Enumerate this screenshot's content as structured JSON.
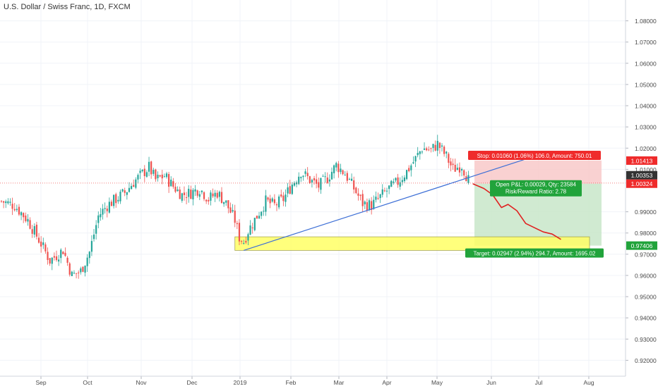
{
  "title": "U.S. Dollar / Swiss Franc, 1D, FXCM",
  "colors": {
    "up": "#26a69a",
    "down": "#ef5350",
    "stop_zone": "#f8c9c9",
    "target_zone": "#c8e6c9",
    "highlight": "#ffff66",
    "trendline": "#3d6fd6",
    "projection": "#e02020",
    "stop_label": "#ef2b2b",
    "target_label": "#21a33b",
    "price_label": "#333333"
  },
  "chart_data": {
    "type": "candlestick",
    "y_axis": {
      "ticks": [
        "1.08000",
        "1.07000",
        "1.06000",
        "1.05000",
        "1.04000",
        "1.03000",
        "1.02000",
        "1.01000",
        "0.99000",
        "0.98000",
        "0.97000",
        "0.96000",
        "0.95000",
        "0.94000",
        "0.93000",
        "0.92000"
      ],
      "range": [
        0.9125,
        1.0865
      ]
    },
    "x_axis": {
      "ticks": [
        "Sep",
        "Oct",
        "Nov",
        "Dec",
        "2019",
        "Feb",
        "Mar",
        "Apr",
        "May",
        "Jun",
        "Jul",
        "Aug"
      ]
    },
    "price_path": [
      [
        0,
        0.995
      ],
      [
        6,
        0.993
      ],
      [
        12,
        0.986
      ],
      [
        18,
        0.975
      ],
      [
        22,
        0.967
      ],
      [
        28,
        0.972
      ],
      [
        32,
        0.96
      ],
      [
        36,
        0.962
      ],
      [
        40,
        0.971
      ],
      [
        44,
        0.988
      ],
      [
        48,
        0.993
      ],
      [
        52,
        0.996
      ],
      [
        56,
        0.999
      ],
      [
        60,
        1.004
      ],
      [
        64,
        1.008
      ],
      [
        67,
        1.011
      ],
      [
        70,
        1.005
      ],
      [
        74,
        1.007
      ],
      [
        78,
        1.002
      ],
      [
        82,
        0.998
      ],
      [
        86,
        0.999
      ],
      [
        90,
        1.001
      ],
      [
        94,
        0.996
      ],
      [
        98,
        0.999
      ],
      [
        102,
        0.994
      ],
      [
        106,
        0.986
      ],
      [
        108,
        0.978
      ],
      [
        110,
        0.976
      ],
      [
        112,
        0.981
      ],
      [
        116,
        0.988
      ],
      [
        120,
        0.995
      ],
      [
        124,
        0.993
      ],
      [
        128,
        0.996
      ],
      [
        132,
        1.003
      ],
      [
        136,
        1.009
      ],
      [
        140,
        1.005
      ],
      [
        144,
        1.002
      ],
      [
        148,
        1.006
      ],
      [
        152,
        1.012
      ],
      [
        156,
        1.008
      ],
      [
        160,
        1.001
      ],
      [
        164,
        0.994
      ],
      [
        168,
        0.993
      ],
      [
        172,
        0.997
      ],
      [
        176,
        1.001
      ],
      [
        180,
        1.004
      ],
      [
        184,
        1.009
      ],
      [
        188,
        1.015
      ],
      [
        191,
        1.02
      ],
      [
        195,
        1.019
      ],
      [
        198,
        1.022
      ],
      [
        202,
        1.016
      ],
      [
        205,
        1.01
      ],
      [
        209,
        1.012
      ],
      [
        212,
        1.005
      ]
    ],
    "price_levels": {
      "stop": 1.01413,
      "current": 1.00353,
      "entry": 1.00324,
      "target": 0.97406
    },
    "price_labels": [
      "1.01413",
      "1.00353",
      "1.00324",
      "0.97406"
    ],
    "annotations": {
      "stop": "Stop: 0.01060 (1.06%) 106.0, Amount: 750.01",
      "pnl": "Open P&L: 0.00029, Qty: 23584",
      "risk_reward": "Risk/Reward Ratio: 2.78",
      "target": "Target: 0.02947 (2.94%) 294.7, Amount: 1695.02"
    },
    "trendline": {
      "from": [
        110,
        0.9718
      ],
      "to": [
        240,
        1.0155
      ]
    },
    "highlight_zone": {
      "x": [
        106,
        267
      ],
      "price": [
        0.9718,
        0.9782
      ]
    },
    "projection_path": [
      [
        214,
        1.0032
      ],
      [
        219,
        1.001
      ],
      [
        223,
        0.998
      ],
      [
        227,
        0.992
      ],
      [
        230,
        0.9935
      ],
      [
        234,
        0.9905
      ],
      [
        238,
        0.9845
      ],
      [
        242,
        0.9825
      ],
      [
        246,
        0.9805
      ],
      [
        250,
        0.9795
      ],
      [
        254,
        0.977
      ]
    ],
    "grid": true
  }
}
